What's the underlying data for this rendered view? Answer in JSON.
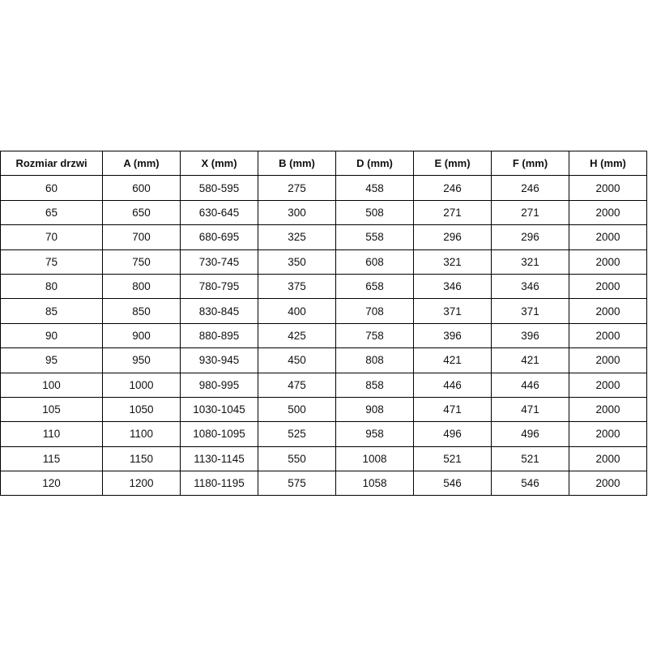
{
  "table": {
    "header": [
      "Rozmiar drzwi",
      "A (mm)",
      "X (mm)",
      "B (mm)",
      "D (mm)",
      "E (mm)",
      "F (mm)",
      "H (mm)"
    ],
    "rows": [
      [
        "60",
        "600",
        "580-595",
        "275",
        "458",
        "246",
        "246",
        "2000"
      ],
      [
        "65",
        "650",
        "630-645",
        "300",
        "508",
        "271",
        "271",
        "2000"
      ],
      [
        "70",
        "700",
        "680-695",
        "325",
        "558",
        "296",
        "296",
        "2000"
      ],
      [
        "75",
        "750",
        "730-745",
        "350",
        "608",
        "321",
        "321",
        "2000"
      ],
      [
        "80",
        "800",
        "780-795",
        "375",
        "658",
        "346",
        "346",
        "2000"
      ],
      [
        "85",
        "850",
        "830-845",
        "400",
        "708",
        "371",
        "371",
        "2000"
      ],
      [
        "90",
        "900",
        "880-895",
        "425",
        "758",
        "396",
        "396",
        "2000"
      ],
      [
        "95",
        "950",
        "930-945",
        "450",
        "808",
        "421",
        "421",
        "2000"
      ],
      [
        "100",
        "1000",
        "980-995",
        "475",
        "858",
        "446",
        "446",
        "2000"
      ],
      [
        "105",
        "1050",
        "1030-1045",
        "500",
        "908",
        "471",
        "471",
        "2000"
      ],
      [
        "110",
        "1100",
        "1080-1095",
        "525",
        "958",
        "496",
        "496",
        "2000"
      ],
      [
        "115",
        "1150",
        "1130-1145",
        "550",
        "1008",
        "521",
        "521",
        "2000"
      ],
      [
        "120",
        "1200",
        "1180-1195",
        "575",
        "1058",
        "546",
        "546",
        "2000"
      ]
    ]
  }
}
